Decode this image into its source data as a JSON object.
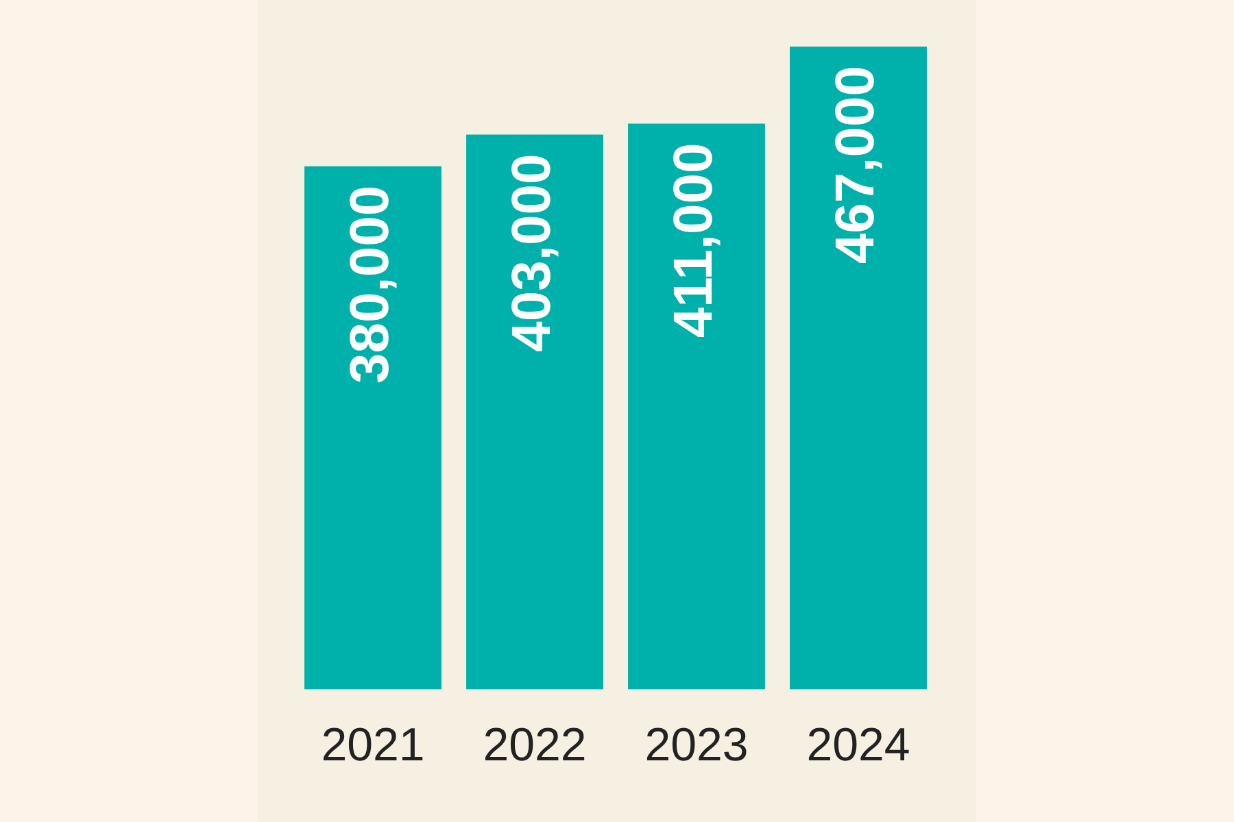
{
  "chart_data": {
    "type": "bar",
    "categories": [
      "2021",
      "2022",
      "2023",
      "2024"
    ],
    "values": [
      380000,
      403000,
      411000,
      467000
    ],
    "color": "#00b0aa",
    "value_labels": [
      "380,000",
      "403,000",
      "411,000",
      "467,000"
    ]
  }
}
